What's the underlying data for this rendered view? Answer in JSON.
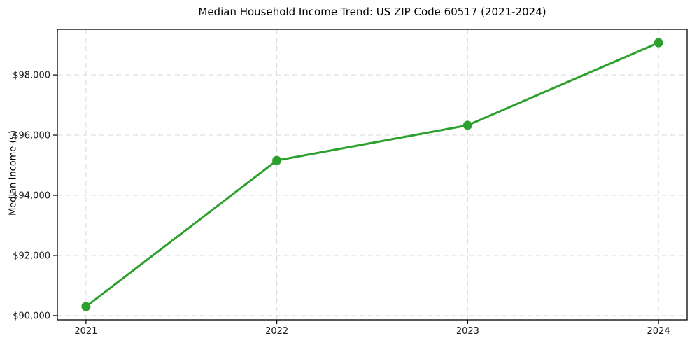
{
  "chart_data": {
    "type": "line",
    "title": "Median Household Income Trend: US ZIP Code 60517 (2021-2024)",
    "xlabel": "",
    "ylabel": "Median Income ($)",
    "x": [
      2021,
      2022,
      2023,
      2024
    ],
    "series": [
      {
        "name": "Median income",
        "values": [
          90300,
          95160,
          96330,
          99070
        ],
        "color": "#2ca02c",
        "marker": "circle"
      }
    ],
    "xticks": [
      {
        "value": 2021,
        "label": "2021"
      },
      {
        "value": 2022,
        "label": "2022"
      },
      {
        "value": 2023,
        "label": "2023"
      },
      {
        "value": 2024,
        "label": "2024"
      }
    ],
    "yticks": [
      {
        "value": 90000,
        "label": "$90,000"
      },
      {
        "value": 92000,
        "label": "$92,000"
      },
      {
        "value": 94000,
        "label": "$94,000"
      },
      {
        "value": 96000,
        "label": "$96,000"
      },
      {
        "value": 98000,
        "label": "$98,000"
      }
    ],
    "xlim": [
      2020.85,
      2024.15
    ],
    "ylim": [
      89858,
      99515
    ],
    "grid": true,
    "grid_color": "#d9d9d9",
    "grid_style": "dashed",
    "legend_position": "none",
    "axis_color": "#000000",
    "tick_label_color": "#1a1a1a",
    "background": "#ffffff"
  }
}
